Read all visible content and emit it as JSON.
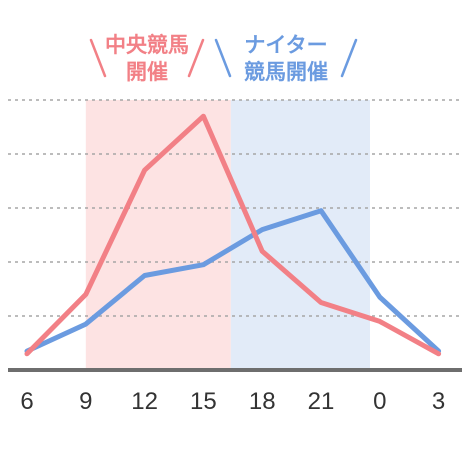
{
  "chart_data": {
    "type": "line",
    "categories": [
      "6",
      "9",
      "12",
      "15",
      "18",
      "21",
      "0",
      "3"
    ],
    "series": [
      {
        "name": "中央競馬開催",
        "values": [
          0.3,
          1.4,
          3.7,
          4.7,
          2.2,
          1.25,
          0.9,
          0.3
        ],
        "color": "#F28086"
      },
      {
        "name": "ナイター競馬開催",
        "values": [
          0.35,
          0.85,
          1.75,
          1.95,
          2.6,
          2.95,
          1.35,
          0.35
        ],
        "color": "#6B9BE0"
      }
    ],
    "bands": [
      {
        "label_lines": [
          "中央競馬",
          "開催"
        ],
        "from": 9,
        "to": 16.4,
        "fill": "#FDE3E3",
        "color": "#F28086"
      },
      {
        "label_lines": [
          "ナイター",
          "競馬開催"
        ],
        "from": 16.4,
        "to": 23.5,
        "fill": "#E2EBF8",
        "color": "#6B9BE0"
      }
    ],
    "ylim": [
      0,
      5
    ],
    "grid": true,
    "xlabel": "",
    "ylabel": "",
    "title": ""
  }
}
